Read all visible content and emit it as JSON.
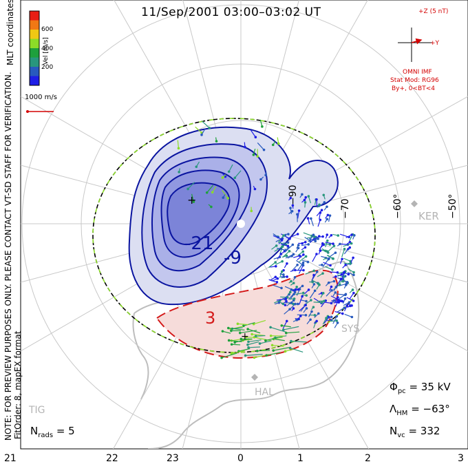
{
  "title": "11/Sep/2001 03:00–03:02 UT",
  "side_note": "NOTE: FOR PREVIEW PURPOSES ONLY. PLEASE CONTACT VT-SD STAFF FOR VERIFICATION.",
  "fit_order": "FitOrder: 8, mapEX format",
  "coords_label": "MLT coordinates",
  "colorbar": {
    "label": "Vel [m/s]",
    "ticks": [
      "600",
      "400",
      "200"
    ],
    "colors": [
      "#e81e14",
      "#f07814",
      "#f0c814",
      "#8cdc28",
      "#1ea03c",
      "#28967d",
      "#285abe",
      "#1e1ee6"
    ]
  },
  "vector_scale_label": "1000 m/s",
  "imf": {
    "z_label": "+Z (5 nT)",
    "y_label": "+Y",
    "source": "OMNI IMF",
    "model": "Stat Mod: RG96",
    "condition": "By+, 0<BT<4"
  },
  "stats": {
    "phi_pc_sym": "Φ",
    "phi_pc_sub": "pc",
    "phi_pc_val": "= 35 kV",
    "lambda_sym": "Λ",
    "lambda_sub": "HM",
    "lambda_val": "= −63°",
    "nvc_sym": "N",
    "nvc_sub": "vc",
    "nvc_val": "= 332",
    "nrads_sym": "N",
    "nrads_sub": "rads",
    "nrads_val": "= 5"
  },
  "stations": {
    "ker": "KER",
    "sys": "SYS",
    "hal": "HAL",
    "tig": "TIG"
  },
  "lat_labels": {
    "l90": "−90",
    "l70": "−70",
    "l60": "−60°",
    "l50": "−50°"
  },
  "chart_data": {
    "type": "contour",
    "xlabel": "MLT",
    "x_ticks": [
      "21",
      "22",
      "23",
      "0",
      "1",
      "2",
      "3"
    ],
    "latitude_circles_deg": [
      -90,
      -80,
      -70,
      -60,
      -50
    ],
    "contours": [
      {
        "label": "-21",
        "value_kV": -21
      },
      {
        "label": "-9",
        "value_kV": -9
      },
      {
        "label": "3",
        "value_kV": 3
      }
    ],
    "potential_min_marker": "+",
    "potential_max_marker": "+",
    "cross_polar_cap_potential_kV": 35,
    "heppner_maynard_boundary_deg": -63,
    "num_vectors": 332,
    "num_radars": 5
  },
  "colors": {
    "negative_cell_fill": "#6f74d8",
    "positive_cell_fill": "#f0b4b0",
    "negative_contour": "#0a14a0",
    "positive_contour": "#d41a1a",
    "boundary_green": "#8cdc28"
  }
}
